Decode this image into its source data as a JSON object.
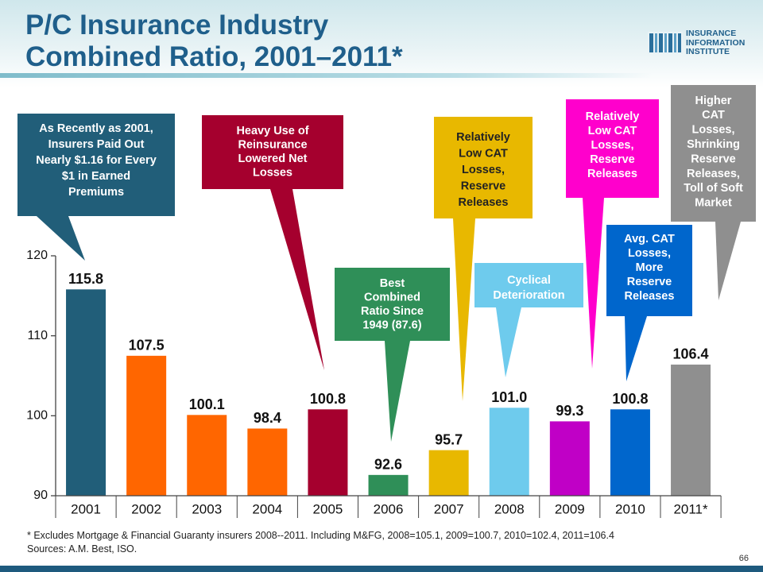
{
  "slide": {
    "title_line1": "P/C Insurance Industry",
    "title_line2": "Combined Ratio, 2001–2011*",
    "logo_line1": "INSURANCE",
    "logo_line2": "INFORMATION",
    "logo_line3": "INSTITUTE",
    "footnote_line1": "* Excludes Mortgage & Financial Guaranty insurers 2008--2011. Including M&FG, 2008=105.1, 2009=100.7, 2010=102.4, 2011=106.4",
    "footnote_line2": "Sources: A.M. Best, ISO.",
    "page_number": "66"
  },
  "chart_data": {
    "type": "bar",
    "title": "P/C Insurance Industry Combined Ratio, 2001–2011*",
    "categories": [
      "2001",
      "2002",
      "2003",
      "2004",
      "2005",
      "2006",
      "2007",
      "2008",
      "2009",
      "2010",
      "2011*"
    ],
    "values": [
      115.8,
      107.5,
      100.1,
      98.4,
      100.8,
      92.6,
      95.7,
      101.0,
      99.3,
      100.8,
      106.4
    ],
    "value_labels": [
      "115.8",
      "107.5",
      "100.1",
      "98.4",
      "100.8",
      "92.6",
      "95.7",
      "101.0",
      "99.3",
      "100.8",
      "106.4"
    ],
    "bar_colors": [
      "#215e79",
      "#ff6600",
      "#ff6600",
      "#ff6600",
      "#a5002e",
      "#2f8f58",
      "#e8b800",
      "#6ecbed",
      "#c000c6",
      "#0066cc",
      "#8f8f8f"
    ],
    "ylim": [
      90,
      120
    ],
    "yticks": [
      90,
      100,
      110,
      120
    ],
    "ytick_labels": [
      "90",
      "100",
      "110",
      "120"
    ],
    "xlabel": "",
    "ylabel": "",
    "grid": false,
    "legend": "none",
    "annotations": [
      {
        "category": "2001",
        "color": "#215e79",
        "lines": [
          "As Recently as 2001,",
          "Insurers Paid Out",
          "Nearly $1.16 for Every",
          "$1 in Earned",
          "Premiums"
        ]
      },
      {
        "category": "2005",
        "color": "#a5002e",
        "lines": [
          "Heavy Use of",
          "Reinsurance",
          "Lowered Net",
          "Losses"
        ]
      },
      {
        "category": "2006",
        "color": "#2f8f58",
        "lines": [
          "Best",
          "Combined",
          "Ratio Since",
          "1949 (87.6)"
        ]
      },
      {
        "category": "2007",
        "color": "#e8b800",
        "text_color": "#222222",
        "lines": [
          "Relatively",
          "Low CAT",
          "Losses,",
          "Reserve",
          "Releases"
        ]
      },
      {
        "category": "2008",
        "color": "#6ecbed",
        "lines": [
          "Cyclical",
          "Deterioration"
        ]
      },
      {
        "category": "2009",
        "color": "#ff00cc",
        "lines": [
          "Relatively",
          "Low CAT",
          "Losses,",
          "Reserve",
          "Releases"
        ]
      },
      {
        "category": "2010",
        "color": "#0066cc",
        "lines": [
          "Avg. CAT",
          "Losses,",
          "More",
          "Reserve",
          "Releases"
        ]
      },
      {
        "category": "2011*",
        "color": "#8f8f8f",
        "lines": [
          "Higher",
          "CAT",
          "Losses,",
          "Shrinking",
          "Reserve",
          "Releases,",
          "Toll of Soft",
          "Market"
        ]
      }
    ]
  }
}
